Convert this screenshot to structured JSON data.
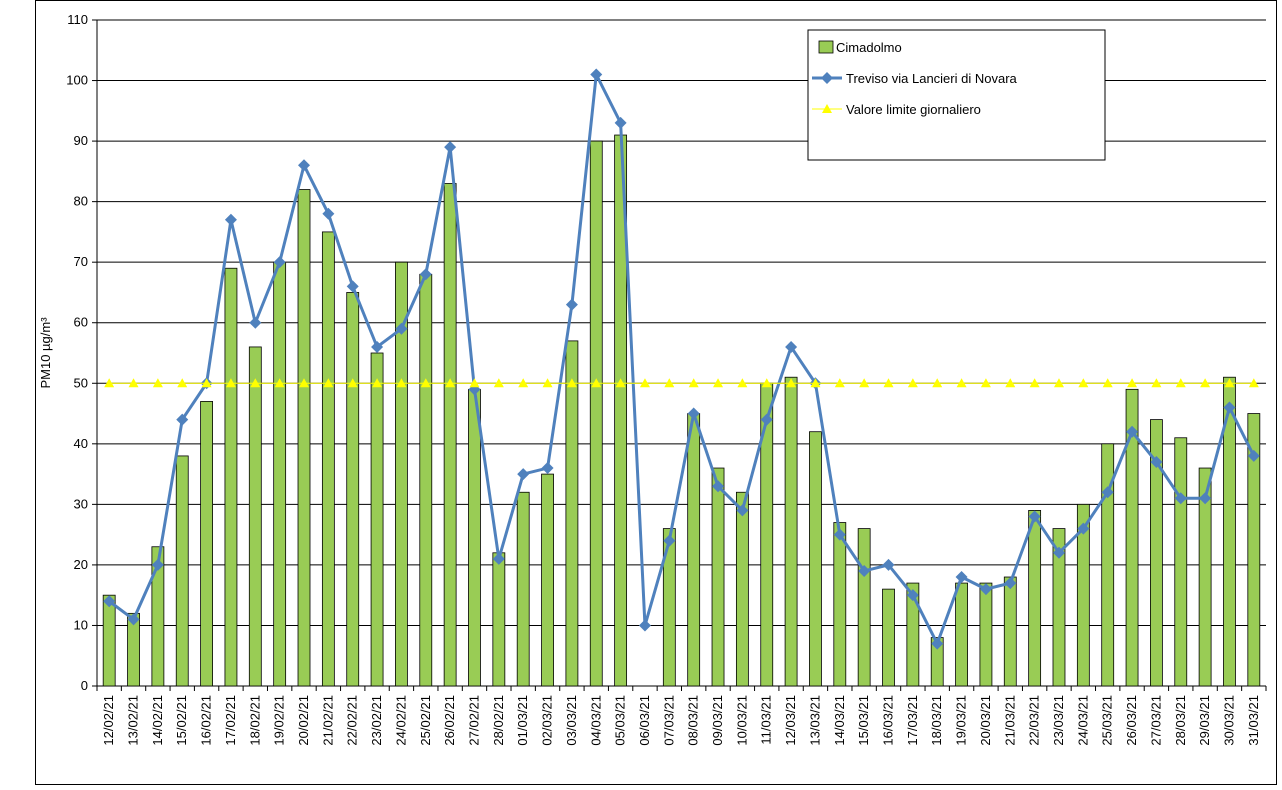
{
  "chart_data": {
    "type": "bar-line",
    "y_label": "PM10 µg/m³",
    "categories": [
      "12/02/21",
      "13/02/21",
      "14/02/21",
      "15/02/21",
      "16/02/21",
      "17/02/21",
      "18/02/21",
      "19/02/21",
      "20/02/21",
      "21/02/21",
      "22/02/21",
      "23/02/21",
      "24/02/21",
      "25/02/21",
      "26/02/21",
      "27/02/21",
      "28/02/21",
      "01/03/21",
      "02/03/21",
      "03/03/21",
      "04/03/21",
      "05/03/21",
      "06/03/21",
      "07/03/21",
      "08/03/21",
      "09/03/21",
      "10/03/21",
      "11/03/21",
      "12/03/21",
      "13/03/21",
      "14/03/21",
      "15/03/21",
      "16/03/21",
      "17/03/21",
      "18/03/21",
      "19/03/21",
      "20/03/21",
      "21/03/21",
      "22/03/21",
      "23/03/21",
      "24/03/21",
      "25/03/21",
      "26/03/21",
      "27/03/21",
      "28/03/21",
      "29/03/21",
      "30/03/21",
      "31/03/21"
    ],
    "series": [
      {
        "name": "Cimadolmo",
        "type": "bar",
        "color": "#99cc55",
        "values": [
          15,
          12,
          23,
          38,
          47,
          69,
          56,
          70,
          82,
          75,
          65,
          55,
          70,
          68,
          83,
          49,
          22,
          32,
          35,
          57,
          90,
          91,
          null,
          26,
          45,
          36,
          32,
          50,
          51,
          42,
          27,
          26,
          16,
          17,
          8,
          17,
          17,
          18,
          29,
          26,
          30,
          40,
          49,
          44,
          41,
          36,
          51,
          45
        ]
      },
      {
        "name": "Treviso via Lancieri  di Novara",
        "type": "line",
        "marker": "diamond",
        "color": "#4f81bd",
        "values": [
          14,
          11,
          20,
          44,
          50,
          77,
          60,
          70,
          86,
          78,
          66,
          56,
          59,
          68,
          89,
          49,
          21,
          35,
          36,
          63,
          101,
          93,
          10,
          24,
          45,
          33,
          29,
          44,
          56,
          50,
          25,
          19,
          20,
          15,
          7,
          18,
          16,
          17,
          28,
          22,
          26,
          32,
          42,
          37,
          31,
          31,
          46,
          38
        ]
      },
      {
        "name": "Valore limite giornaliero",
        "type": "line",
        "marker": "triangle",
        "color": "#ffff00",
        "values": [
          50,
          50,
          50,
          50,
          50,
          50,
          50,
          50,
          50,
          50,
          50,
          50,
          50,
          50,
          50,
          50,
          50,
          50,
          50,
          50,
          50,
          50,
          50,
          50,
          50,
          50,
          50,
          50,
          50,
          50,
          50,
          50,
          50,
          50,
          50,
          50,
          50,
          50,
          50,
          50,
          50,
          50,
          50,
          50,
          50,
          50,
          50,
          50
        ]
      }
    ],
    "ylim": [
      0,
      110
    ],
    "yticks": [
      0,
      10,
      20,
      30,
      40,
      50,
      60,
      70,
      80,
      90,
      100,
      110
    ],
    "grid": true,
    "legend": "upper right"
  }
}
